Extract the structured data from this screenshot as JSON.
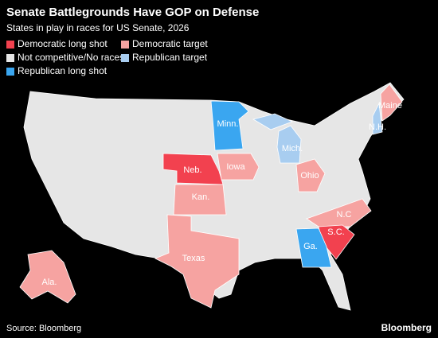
{
  "title": "Senate Battlegrounds Have GOP on Defense",
  "subtitle": "States in play in races for US Senate, 2026",
  "legend": [
    {
      "label": "Democratic long shot",
      "color": "#f2414f"
    },
    {
      "label": "Democratic target",
      "color": "#f6a3a1"
    },
    {
      "label": "Not competitive/No races",
      "color": "#e6e6e6"
    },
    {
      "label": "Republican target",
      "color": "#a8cdf0"
    },
    {
      "label": "Republican long shot",
      "color": "#3aa6f0"
    }
  ],
  "states": [
    {
      "label": "Minn.",
      "category": "Republican long shot"
    },
    {
      "label": "Mich.",
      "category": "Republican target"
    },
    {
      "label": "Maine",
      "category": "Democratic target"
    },
    {
      "label": "N.H.",
      "category": "Republican target"
    },
    {
      "label": "Neb.",
      "category": "Democratic long shot"
    },
    {
      "label": "Iowa",
      "category": "Democratic target"
    },
    {
      "label": "Ohio",
      "category": "Democratic target"
    },
    {
      "label": "Kan.",
      "category": "Democratic target"
    },
    {
      "label": "N.C",
      "category": "Democratic target"
    },
    {
      "label": "S.C.",
      "category": "Democratic long shot"
    },
    {
      "label": "Ga.",
      "category": "Republican long shot"
    },
    {
      "label": "Texas",
      "category": "Democratic target"
    },
    {
      "label": "Ala.",
      "category": "Democratic target"
    }
  ],
  "source": "Source: Bloomberg",
  "brand": "Bloomberg"
}
